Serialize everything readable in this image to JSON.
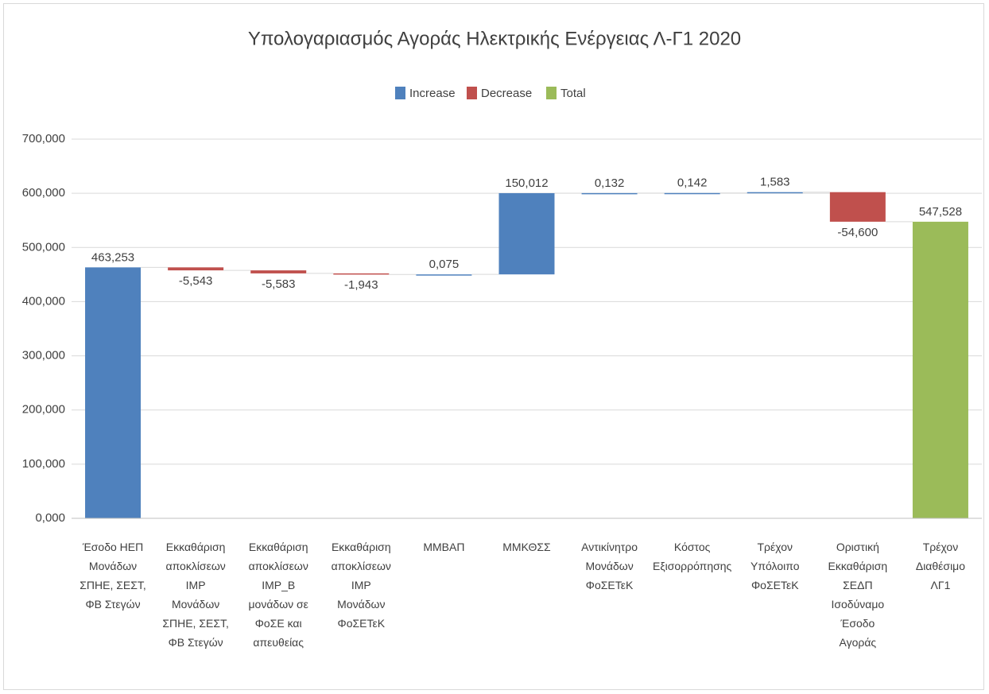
{
  "chart_data": {
    "type": "waterfall",
    "title": "Υπολογαριασμός Αγοράς Ηλεκτρικής Ενέργειας Λ-Γ1  2020",
    "legend": [
      {
        "name": "Increase",
        "color": "#4f81bd"
      },
      {
        "name": "Decrease",
        "color": "#c0504d"
      },
      {
        "name": "Total",
        "color": "#9bbb59"
      }
    ],
    "categories": [
      "Έσοδο ΗΕΠ\nΜονάδων\nΣΠΗΕ, ΣΕΣΤ,\nΦΒ Στεγών",
      "Εκκαθάριση\nαποκλίσεων\nIMP\nΜονάδων\nΣΠΗΕ, ΣΕΣΤ,\nΦΒ Στεγών",
      "Εκκαθάριση\nαποκλίσεων\nIMP_B\nμονάδων σε\nΦοΣΕ και\nαπευθείας",
      "Εκκαθάριση\nαποκλίσεων\nIMP\nΜονάδων\nΦοΣΕΤεΚ",
      "ΜΜΒΑΠ",
      "ΜΜΚΘΣΣ",
      "Αντικίνητρο\nΜονάδων\nΦοΣΕΤεΚ",
      "Κόστος\nΕξισορρόπησης",
      "Τρέχον\nΥπόλοιπο\nΦοΣΕΤεΚ",
      "Οριστική\nΕκκαθάριση\nΣΕΔΠ\nΙσοδύναμο\nΈσοδο\nΑγοράς",
      "Τρέχον\nΔιαθέσιμο\nΛΓ1"
    ],
    "values": [
      463.253,
      -5.543,
      -5.583,
      -1.943,
      0.075,
      150.012,
      0.132,
      0.142,
      1.583,
      -54.6,
      547.528
    ],
    "value_labels": [
      "463,253",
      "-5,543",
      "-5,583",
      "-1,943",
      "0,075",
      "150,012",
      "0,132",
      "0,142",
      "1,583",
      "-54,600",
      "547,528"
    ],
    "is_total": [
      false,
      false,
      false,
      false,
      false,
      false,
      false,
      false,
      false,
      false,
      true
    ],
    "ylim": [
      0,
      700
    ],
    "yticks": [
      {
        "value": 0,
        "label": "0,000"
      },
      {
        "value": 100,
        "label": "100,000"
      },
      {
        "value": 200,
        "label": "200,000"
      },
      {
        "value": 300,
        "label": "300,000"
      },
      {
        "value": 400,
        "label": "400,000"
      },
      {
        "value": 500,
        "label": "500,000"
      },
      {
        "value": 600,
        "label": "600,000"
      },
      {
        "value": 700,
        "label": "700,000"
      }
    ],
    "grid": true
  }
}
